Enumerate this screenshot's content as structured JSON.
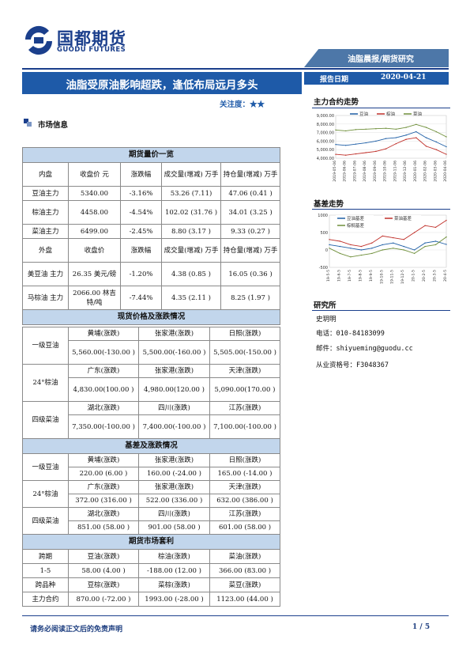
{
  "header": {
    "logo_zh": "国都期货",
    "logo_en": "GUODU FUTURES",
    "banner": "油脂晨报/期货研究",
    "title": "油脂受原油影响超跌，逢低布局远月多头",
    "date_label": "报告日期",
    "date": "2020-04-21",
    "attention": "关注度：★★"
  },
  "market_info_title": "市场信息",
  "futures": {
    "section_title": "期货量价一览",
    "domestic_header": [
      "内盘",
      "收盘价 元",
      "涨跌幅",
      "成交量(增减) 万手",
      "持仓量(增减) 万手"
    ],
    "domestic_rows": [
      [
        "豆油主力",
        "5340.00",
        "-3.16%",
        "53.26 (7.11)",
        "47.06 (0.41 )"
      ],
      [
        "棕油主力",
        "4458.00",
        "-4.54%",
        "102.02 (31.76 )",
        "34.01 (3.25 )"
      ],
      [
        "菜油主力",
        "6499.00",
        "-2.45%",
        "8.80 (3.17 )",
        "9.33 (0.27 )"
      ]
    ],
    "foreign_header": [
      "外盘",
      "收盘价",
      "涨跌幅",
      "成交量(增减) 万手",
      "持仓量(增减) 万手"
    ],
    "foreign_rows": [
      [
        "美豆油 主力",
        "26.35 美元/磅",
        "-1.20%",
        "4.38 (0.85 )",
        "16.05 (0.36 )"
      ],
      [
        "马棕油 主力",
        "2066.00 林吉特/吨",
        "-7.44%",
        "4.35 (2.11 )",
        "8.25 (1.97 )"
      ]
    ]
  },
  "spot": {
    "section_title": "现货价格及涨跌情况",
    "groups": [
      {
        "label": "一级豆油",
        "heads": [
          "黄埔(涨跌)",
          "张家港(涨跌)",
          "日照(涨跌)"
        ],
        "values": [
          "5,560.00(-130.00 )",
          "5,500.00(-160.00 )",
          "5,505.00(-150.00 )"
        ]
      },
      {
        "label": "24°棕油",
        "heads": [
          "广东(涨跌)",
          "张家港(涨跌)",
          "天津(涨跌)"
        ],
        "values": [
          "4,830.00(100.00 )",
          "4,980.00(120.00 )",
          "5,090.00(170.00 )"
        ]
      },
      {
        "label": "四级菜油",
        "heads": [
          "湖北(涨跌)",
          "四川(涨跌)",
          "江苏(涨跌)"
        ],
        "values": [
          "7,350.00(-100.00 )",
          "7,400.00(-100.00 )",
          "7,100.00(-100.00 )"
        ]
      }
    ]
  },
  "basis": {
    "section_title": "基差及涨跌情况",
    "groups": [
      {
        "label": "一级豆油",
        "heads": [
          "黄埔(涨跌)",
          "张家港(涨跌)",
          "日照(涨跌)"
        ],
        "values": [
          "220.00 (6.00 )",
          "160.00 (-24.00 )",
          "165.00 (-14.00 )"
        ]
      },
      {
        "label": "24°棕油",
        "heads": [
          "广东(涨跌)",
          "张家港(涨跌)",
          "天津(涨跌)"
        ],
        "values": [
          "372.00 (316.00 )",
          "522.00 (336.00 )",
          "632.00 (386.00 )"
        ]
      },
      {
        "label": "四级菜油",
        "heads": [
          "湖北(涨跌)",
          "四川(涨跌)",
          "江苏(涨跌)"
        ],
        "values": [
          "851.00 (58.00 )",
          "901.00 (58.00 )",
          "601.00 (58.00 )"
        ]
      }
    ]
  },
  "arbitrage": {
    "section_title": "期货市场套利",
    "header1": [
      "跨期",
      "豆油(涨跌)",
      "棕油(涨跌)",
      "菜油(涨跌)"
    ],
    "row1": [
      "1-5",
      "58.00 (4.00 )",
      "-188.00 (12.00 )",
      "366.00 (83.00 )"
    ],
    "header2": [
      "跨品种",
      "豆棕(涨跌)",
      "菜棕(涨跌)",
      "菜豆(涨跌)"
    ],
    "row2": [
      "主力合约",
      "870.00 (-72.00 )",
      "1993.00 (-28.00 )",
      "1123.00 (44.00 )"
    ]
  },
  "right": {
    "main_trend_title": "主力合约走势",
    "basis_trend_title": "基差走势",
    "research_title": "研究所",
    "researcher": "史玥明",
    "phone": "电话：010-84183099",
    "email": "邮件：shiyueming@guodu.cc",
    "license": "从业资格号：F3048367"
  },
  "footer": {
    "disclaimer": "请务必阅读正文后的免责声明",
    "page": "1 / 5"
  },
  "chart_data": [
    {
      "type": "line",
      "title": "主力合约走势",
      "x": [
        "2019-05-06",
        "2019-06-06",
        "2019-07-06",
        "2019-08-06",
        "2019-09-06",
        "2019-10-06",
        "2019-11-06",
        "2019-12-06",
        "2020-01-06",
        "2020-02-06",
        "2020-03-06",
        "2020-04-06"
      ],
      "ylim": [
        4000,
        9000
      ],
      "yticks": [
        "9,000.00",
        "8,000.00",
        "7,000.00",
        "6,000.00",
        "5,000.00",
        "4,000.00"
      ],
      "legend_position": "top",
      "series": [
        {
          "name": "豆油",
          "color": "#1f5fa6",
          "values": [
            5600,
            5500,
            5650,
            5800,
            6000,
            6300,
            6400,
            6700,
            7100,
            6400,
            5900,
            5340
          ]
        },
        {
          "name": "棕油",
          "color": "#c0302a",
          "values": [
            4450,
            4350,
            4500,
            4650,
            4800,
            5100,
            5700,
            6200,
            6400,
            5400,
            5000,
            4458
          ]
        },
        {
          "name": "菜油",
          "color": "#6f8f3a",
          "values": [
            7300,
            7200,
            7350,
            7400,
            7450,
            7500,
            7400,
            7600,
            7950,
            7600,
            7100,
            6499
          ]
        }
      ]
    },
    {
      "type": "line",
      "title": "基差走势",
      "x": [
        "19-5-5",
        "19-6-5",
        "19-7-5",
        "19-8-5",
        "19-9-5",
        "19-10-5",
        "19-11-5",
        "19-12-5",
        "20-1-5",
        "20-2-5",
        "20-3-5",
        "20-4-5"
      ],
      "ylim": [
        -500,
        1000
      ],
      "yticks": [
        "1000",
        "500",
        "0",
        "-500"
      ],
      "legend_position": "top",
      "series": [
        {
          "name": "豆油基差",
          "color": "#1f5fa6",
          "values": [
            150,
            100,
            50,
            0,
            50,
            150,
            200,
            100,
            0,
            200,
            250,
            160
          ]
        },
        {
          "name": "菜油基差",
          "color": "#c0302a",
          "values": [
            300,
            250,
            150,
            100,
            200,
            400,
            350,
            300,
            500,
            700,
            650,
            851
          ]
        },
        {
          "name": "棕榈基差",
          "color": "#6f8f3a",
          "values": [
            50,
            -100,
            -200,
            -150,
            -100,
            0,
            50,
            0,
            -100,
            100,
            150,
            372
          ]
        }
      ]
    }
  ]
}
